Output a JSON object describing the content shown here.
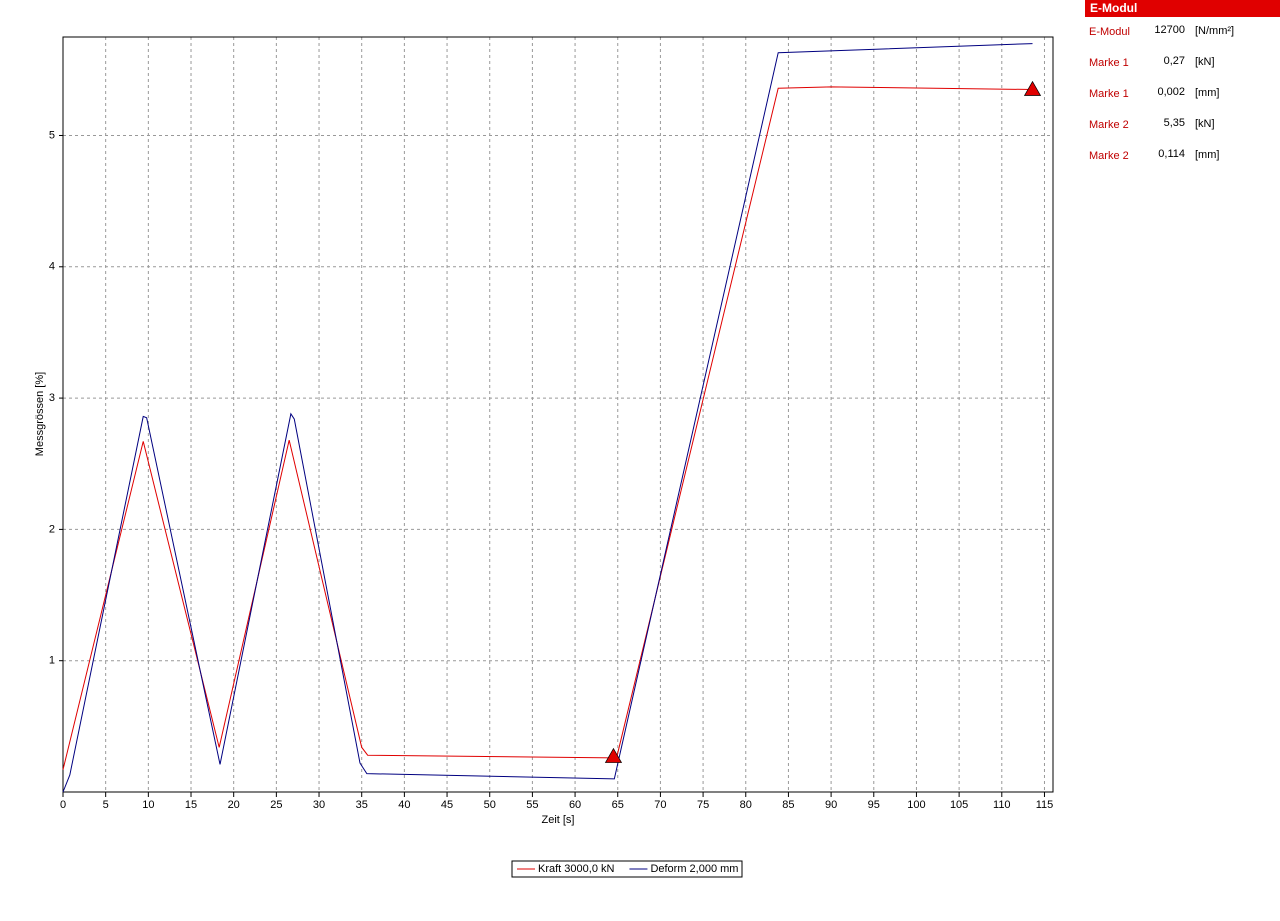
{
  "chart_data": {
    "type": "line",
    "xlabel": "Zeit [s]",
    "ylabel": "Messgrössen [%]",
    "xlim": [
      0,
      116
    ],
    "ylim": [
      0,
      5.75
    ],
    "xticks": [
      0,
      5,
      10,
      15,
      20,
      25,
      30,
      35,
      40,
      45,
      50,
      55,
      60,
      65,
      70,
      75,
      80,
      85,
      90,
      95,
      100,
      105,
      110,
      115
    ],
    "yticks": [
      1,
      2,
      3,
      4,
      5
    ],
    "grid": true,
    "series": [
      {
        "name": "Kraft 3000,0 kN",
        "color": "#e00000",
        "x": [
          0,
          9.4,
          18.3,
          26.5,
          35.0,
          35.7,
          64.4,
          64.9,
          83.8,
          90,
          113.6
        ],
        "values": [
          0.17,
          2.67,
          0.34,
          2.68,
          0.34,
          0.28,
          0.26,
          0.27,
          5.36,
          5.37,
          5.35
        ]
      },
      {
        "name": "Deform 2,000 mm",
        "color": "#000080",
        "x": [
          0,
          0.8,
          9.4,
          9.8,
          18.4,
          26.7,
          27.1,
          34.8,
          35.6,
          64.6,
          83.8,
          113.6
        ],
        "values": [
          0,
          0.13,
          2.86,
          2.85,
          0.21,
          2.88,
          2.84,
          0.22,
          0.14,
          0.1,
          5.63,
          5.7
        ]
      }
    ],
    "markers": [
      {
        "x": 64.5,
        "y": 0.27,
        "color": "#e00000"
      },
      {
        "x": 113.6,
        "y": 5.35,
        "color": "#e00000"
      }
    ]
  },
  "panel": {
    "title": "E-Modul",
    "rows": [
      [
        "E-Modul",
        "12700",
        "[N/mm²]"
      ],
      [
        "Marke 1",
        "0,27",
        "[kN]"
      ],
      [
        "Marke 1",
        "0,002",
        "[mm]"
      ],
      [
        "Marke 2",
        "5,35",
        "[kN]"
      ],
      [
        "Marke 2",
        "0,114",
        "[mm]"
      ]
    ]
  }
}
